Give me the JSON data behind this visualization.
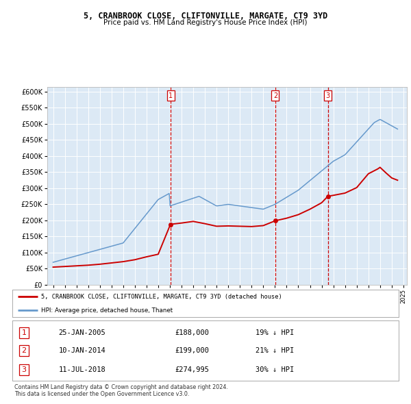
{
  "title": "5, CRANBROOK CLOSE, CLIFTONVILLE, MARGATE, CT9 3YD",
  "subtitle": "Price paid vs. HM Land Registry's House Price Index (HPI)",
  "hpi_label": "HPI: Average price, detached house, Thanet",
  "property_label": "5, CRANBROOK CLOSE, CLIFTONVILLE, MARGATE, CT9 3YD (detached house)",
  "plot_bg_color": "#dce9f5",
  "red_color": "#cc0000",
  "blue_color": "#6699cc",
  "yticks": [
    0,
    50000,
    100000,
    150000,
    200000,
    250000,
    300000,
    350000,
    400000,
    450000,
    500000,
    550000,
    600000
  ],
  "sales": [
    {
      "date": 2005.07,
      "price": 188000,
      "label": "1"
    },
    {
      "date": 2014.03,
      "price": 199000,
      "label": "2"
    },
    {
      "date": 2018.53,
      "price": 274995,
      "label": "3"
    }
  ],
  "sale_dates_text": [
    "25-JAN-2005",
    "10-JAN-2014",
    "11-JUL-2018"
  ],
  "sale_prices_text": [
    "£188,000",
    "£199,000",
    "£274,995"
  ],
  "sale_notes": [
    "19% ↓ HPI",
    "21% ↓ HPI",
    "30% ↓ HPI"
  ],
  "footer": "Contains HM Land Registry data © Crown copyright and database right 2024.\nThis data is licensed under the Open Government Licence v3.0."
}
